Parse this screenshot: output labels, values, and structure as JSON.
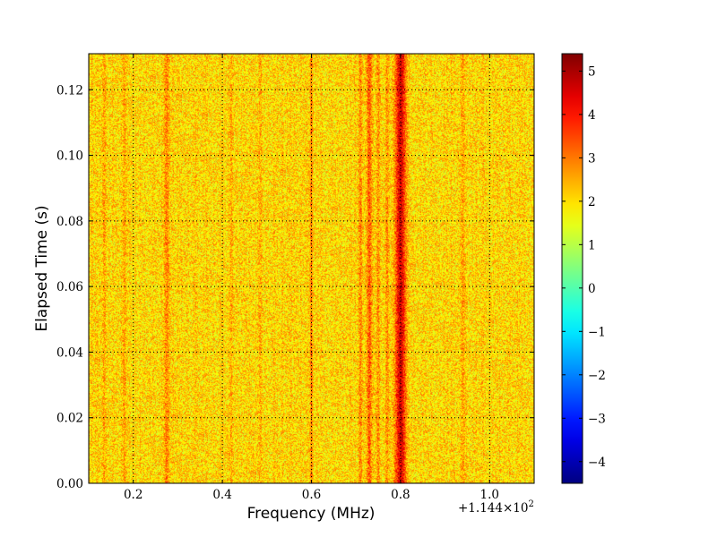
{
  "chart_data": {
    "type": "heatmap",
    "title": "",
    "xlabel": "Frequency (MHz)",
    "ylabel": "Elapsed Time (s)",
    "x_offset_label": "+1.144×10",
    "x_offset_exp": "2",
    "xlim": [
      0.1,
      1.1
    ],
    "ylim": [
      0.0,
      0.131
    ],
    "x_ticks": [
      0.2,
      0.4,
      0.6,
      0.8,
      1.0
    ],
    "x_tick_labels": [
      "0.2",
      "0.4",
      "0.6",
      "0.8",
      "1.0"
    ],
    "y_ticks": [
      0.0,
      0.02,
      0.04,
      0.06,
      0.08,
      0.1,
      0.12
    ],
    "y_tick_labels": [
      "0.00",
      "0.02",
      "0.04",
      "0.06",
      "0.08",
      "0.10",
      "0.12"
    ],
    "grid": true,
    "colormap": "jet",
    "colorbar": {
      "vmin": -4.5,
      "vmax": 5.4,
      "ticks": [
        5,
        4,
        3,
        2,
        1,
        0,
        -1,
        -2,
        -3,
        -4
      ],
      "tick_labels": [
        "5",
        "4",
        "3",
        "2",
        "1",
        "0",
        "−1",
        "−2",
        "−3",
        "−4"
      ]
    },
    "background_level": 2.0,
    "features": [
      {
        "x": 0.8,
        "width": 0.012,
        "level": 4.6
      },
      {
        "x": 0.73,
        "width": 0.006,
        "level": 3.3
      },
      {
        "x": 0.71,
        "width": 0.004,
        "level": 2.9
      },
      {
        "x": 0.75,
        "width": 0.004,
        "level": 2.8
      },
      {
        "x": 0.77,
        "width": 0.004,
        "level": 2.8
      },
      {
        "x": 0.6,
        "width": 0.003,
        "level": 3.1
      },
      {
        "x": 0.275,
        "width": 0.006,
        "level": 2.9
      },
      {
        "x": 0.18,
        "width": 0.004,
        "level": 2.6
      },
      {
        "x": 0.135,
        "width": 0.004,
        "level": 2.6
      },
      {
        "x": 0.42,
        "width": 0.004,
        "level": 2.5
      },
      {
        "x": 0.485,
        "width": 0.004,
        "level": 2.5
      },
      {
        "x": 0.94,
        "width": 0.005,
        "level": 2.6
      }
    ]
  }
}
